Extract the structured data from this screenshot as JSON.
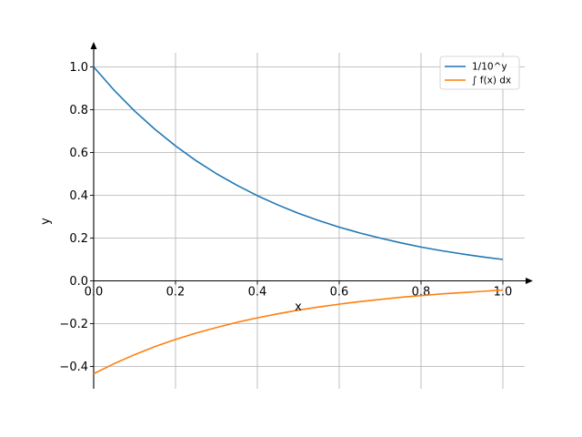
{
  "chart_data": {
    "type": "line",
    "xlabel": "x",
    "ylabel": "y",
    "xlim": [
      0.0,
      1.0
    ],
    "ylim": [
      -0.5,
      1.1
    ],
    "grid": true,
    "legend_position": "top-right",
    "x_ticks": [
      "0.0",
      "0.2",
      "0.4",
      "0.6",
      "0.8",
      "1.0"
    ],
    "y_ticks": [
      "−0.4",
      "−0.2",
      "0.0",
      "0.2",
      "0.4",
      "0.6",
      "0.8",
      "1.0"
    ],
    "x_tick_values": [
      0.0,
      0.2,
      0.4,
      0.6,
      0.8,
      1.0
    ],
    "y_tick_values": [
      -0.4,
      -0.2,
      0.0,
      0.2,
      0.4,
      0.6,
      0.8,
      1.0
    ],
    "series": [
      {
        "name": "1/10^y",
        "color": "#1f77b4",
        "x": [
          0.0,
          0.05,
          0.1,
          0.15,
          0.2,
          0.25,
          0.3,
          0.35,
          0.4,
          0.45,
          0.5,
          0.55,
          0.6,
          0.65,
          0.7,
          0.75,
          0.8,
          0.85,
          0.9,
          0.95,
          1.0
        ],
        "y": [
          1.0,
          0.891,
          0.794,
          0.708,
          0.631,
          0.562,
          0.501,
          0.447,
          0.398,
          0.355,
          0.316,
          0.282,
          0.251,
          0.224,
          0.2,
          0.178,
          0.158,
          0.141,
          0.126,
          0.112,
          0.1
        ]
      },
      {
        "name": "∫ f(x) dx",
        "color": "#ff7f0e",
        "x": [
          0.0,
          0.05,
          0.1,
          0.15,
          0.2,
          0.25,
          0.3,
          0.35,
          0.4,
          0.45,
          0.5,
          0.55,
          0.6,
          0.65,
          0.7,
          0.75,
          0.8,
          0.85,
          0.9,
          0.95,
          1.0
        ],
        "y": [
          -0.434,
          -0.387,
          -0.345,
          -0.307,
          -0.274,
          -0.244,
          -0.218,
          -0.194,
          -0.173,
          -0.154,
          -0.137,
          -0.122,
          -0.109,
          -0.097,
          -0.087,
          -0.077,
          -0.069,
          -0.061,
          -0.055,
          -0.049,
          -0.043
        ]
      }
    ]
  }
}
